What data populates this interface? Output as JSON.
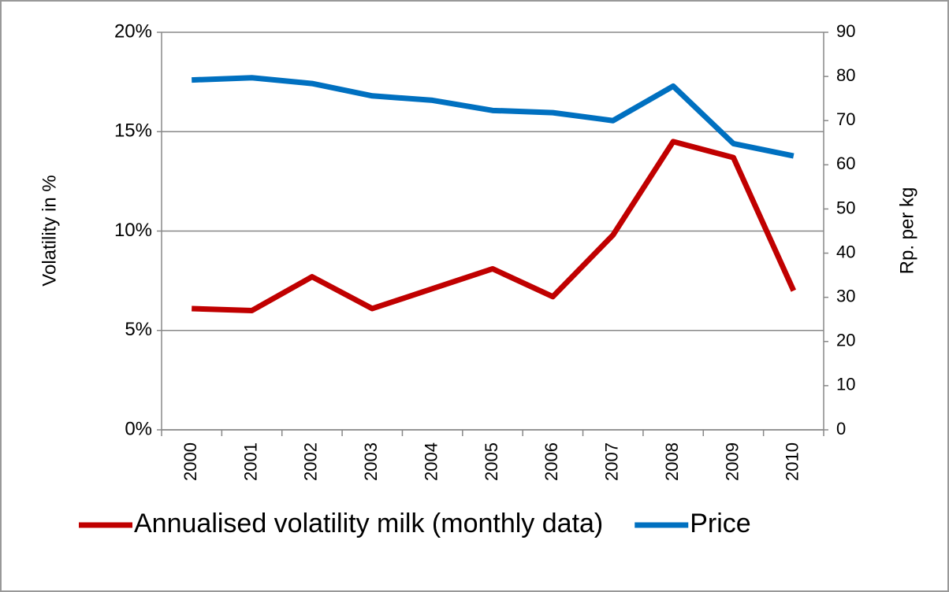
{
  "chart_data": {
    "type": "line",
    "categories": [
      "2000",
      "2001",
      "2002",
      "2003",
      "2004",
      "2005",
      "2006",
      "2007",
      "2008",
      "2009",
      "2010"
    ],
    "series": [
      {
        "name": "Annualised volatility milk (monthly data)",
        "color": "#c00000",
        "values": [
          6.1,
          6.0,
          7.7,
          6.1,
          7.1,
          8.1,
          6.7,
          9.8,
          14.5,
          13.7,
          7.0
        ]
      },
      {
        "name": "Price",
        "color": "#0070c0",
        "axis": "y2",
        "values": [
          79.2,
          79.7,
          78.4,
          75.6,
          74.6,
          72.3,
          71.8,
          70.0,
          77.8,
          64.8,
          62.0
        ]
      }
    ],
    "ylabel": "Volatility in %",
    "y2label": "Rp. per kg",
    "ylim": [
      0,
      20
    ],
    "yticks": [
      {
        "value": 0,
        "label": "0%"
      },
      {
        "value": 5,
        "label": "5%"
      },
      {
        "value": 10,
        "label": "10%"
      },
      {
        "value": 15,
        "label": "15%"
      },
      {
        "value": 20,
        "label": "20%"
      }
    ],
    "y2lim": [
      0,
      90
    ],
    "y2ticks": [
      0,
      10,
      20,
      30,
      40,
      50,
      60,
      70,
      80,
      90
    ],
    "grid": true,
    "legend": "bottom"
  }
}
